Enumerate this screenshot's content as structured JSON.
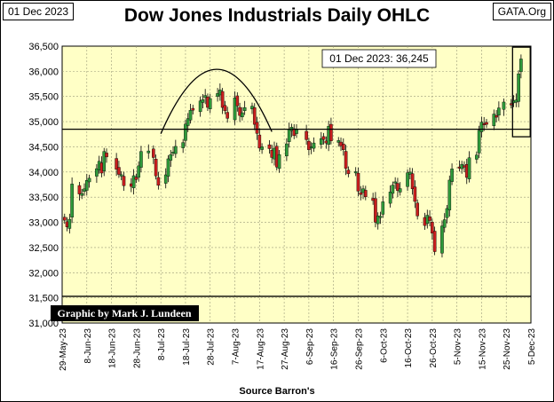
{
  "header": {
    "date_label": "01 Dec 2023",
    "source_label": "GATA.Org"
  },
  "chart_data": {
    "type": "candlestick-ohlc",
    "title": "Dow Jones Industrials Daily OHLC",
    "xlabel": "Source Barron's",
    "ylabel": "",
    "ylim": [
      31000,
      36500
    ],
    "y_ticks": [
      "31,000",
      "31,500",
      "32,000",
      "32,500",
      "33,000",
      "33,500",
      "34,000",
      "34,500",
      "35,000",
      "35,500",
      "36,000",
      "36,500"
    ],
    "y_tick_values": [
      31000,
      31500,
      32000,
      32500,
      33000,
      33500,
      34000,
      34500,
      35000,
      35500,
      36000,
      36500
    ],
    "x_ticks": [
      "29-May-23",
      "8-Jun-23",
      "18-Jun-23",
      "28-Jun-23",
      "8-Jul-23",
      "18-Jul-23",
      "28-Jul-23",
      "7-Aug-23",
      "17-Aug-23",
      "27-Aug-23",
      "6-Sep-23",
      "16-Sep-23",
      "26-Sep-23",
      "6-Oct-23",
      "16-Oct-23",
      "26-Oct-23",
      "5-Nov-23",
      "15-Nov-23",
      "25-Nov-23",
      "5-Dec-23"
    ],
    "xlim": [
      "2023-05-29",
      "2023-12-05"
    ],
    "grid": true,
    "up_color": "#2e9a3a",
    "down_color": "#c81e1e",
    "background_color": "#ffffc6",
    "callout": "01 Dec 2023:  36,245",
    "credit": "Graphic by Mark J. Lundeen",
    "reference_lines": [
      34850,
      31530
    ],
    "closes": [
      [
        "2023-05-30",
        33042
      ],
      [
        "2023-05-31",
        32908
      ],
      [
        "2023-06-01",
        33061
      ],
      [
        "2023-06-02",
        33762
      ],
      [
        "2023-06-05",
        33563
      ],
      [
        "2023-06-06",
        33573
      ],
      [
        "2023-06-07",
        33665
      ],
      [
        "2023-06-08",
        33833
      ],
      [
        "2023-06-09",
        33876
      ],
      [
        "2023-06-12",
        34066
      ],
      [
        "2023-06-13",
        34212
      ],
      [
        "2023-06-14",
        33979
      ],
      [
        "2023-06-15",
        34408
      ],
      [
        "2023-06-16",
        34299
      ],
      [
        "2023-06-20",
        34053
      ],
      [
        "2023-06-21",
        33952
      ],
      [
        "2023-06-22",
        33946
      ],
      [
        "2023-06-23",
        33727
      ],
      [
        "2023-06-26",
        33714
      ],
      [
        "2023-06-27",
        33927
      ],
      [
        "2023-06-28",
        33853
      ],
      [
        "2023-06-29",
        34122
      ],
      [
        "2023-06-30",
        34408
      ],
      [
        "2023-07-03",
        34418
      ],
      [
        "2023-07-05",
        34288
      ],
      [
        "2023-07-06",
        33922
      ],
      [
        "2023-07-07",
        33735
      ],
      [
        "2023-07-10",
        33944
      ],
      [
        "2023-07-11",
        34262
      ],
      [
        "2023-07-12",
        34347
      ],
      [
        "2023-07-13",
        34395
      ],
      [
        "2023-07-14",
        34509
      ],
      [
        "2023-07-17",
        34585
      ],
      [
        "2023-07-18",
        34952
      ],
      [
        "2023-07-19",
        35061
      ],
      [
        "2023-07-20",
        35225
      ],
      [
        "2023-07-21",
        35228
      ],
      [
        "2023-07-24",
        35411
      ],
      [
        "2023-07-25",
        35438
      ],
      [
        "2023-07-26",
        35520
      ],
      [
        "2023-07-27",
        35283
      ],
      [
        "2023-07-28",
        35459
      ],
      [
        "2023-07-31",
        35560
      ],
      [
        "2023-08-01",
        35630
      ],
      [
        "2023-08-02",
        35282
      ],
      [
        "2023-08-03",
        35216
      ],
      [
        "2023-08-04",
        35066
      ],
      [
        "2023-08-07",
        35473
      ],
      [
        "2023-08-08",
        35314
      ],
      [
        "2023-08-09",
        35123
      ],
      [
        "2023-08-10",
        35177
      ],
      [
        "2023-08-11",
        35281
      ],
      [
        "2023-08-14",
        35308
      ],
      [
        "2023-08-15",
        34946
      ],
      [
        "2023-08-16",
        34766
      ],
      [
        "2023-08-17",
        34475
      ],
      [
        "2023-08-18",
        34501
      ],
      [
        "2023-08-21",
        34464
      ],
      [
        "2023-08-22",
        34289
      ],
      [
        "2023-08-23",
        34473
      ],
      [
        "2023-08-24",
        34099
      ],
      [
        "2023-08-25",
        34347
      ],
      [
        "2023-08-28",
        34560
      ],
      [
        "2023-08-29",
        34852
      ],
      [
        "2023-08-30",
        34890
      ],
      [
        "2023-08-31",
        34722
      ],
      [
        "2023-09-01",
        34838
      ],
      [
        "2023-09-05",
        34642
      ],
      [
        "2023-09-06",
        34443
      ],
      [
        "2023-09-07",
        34501
      ],
      [
        "2023-09-08",
        34577
      ],
      [
        "2023-09-11",
        34664
      ],
      [
        "2023-09-12",
        34646
      ],
      [
        "2023-09-13",
        34576
      ],
      [
        "2023-09-14",
        34908
      ],
      [
        "2023-09-15",
        34618
      ],
      [
        "2023-09-18",
        34625
      ],
      [
        "2023-09-19",
        34518
      ],
      [
        "2023-09-20",
        34441
      ],
      [
        "2023-09-21",
        34070
      ],
      [
        "2023-09-22",
        33964
      ],
      [
        "2023-09-25",
        34007
      ],
      [
        "2023-09-26",
        33619
      ],
      [
        "2023-09-27",
        33551
      ],
      [
        "2023-09-28",
        33667
      ],
      [
        "2023-09-29",
        33508
      ],
      [
        "2023-10-02",
        33433
      ],
      [
        "2023-10-03",
        33002
      ],
      [
        "2023-10-04",
        33129
      ],
      [
        "2023-10-05",
        33120
      ],
      [
        "2023-10-06",
        33408
      ],
      [
        "2023-10-09",
        33605
      ],
      [
        "2023-10-10",
        33740
      ],
      [
        "2023-10-11",
        33805
      ],
      [
        "2023-10-12",
        33631
      ],
      [
        "2023-10-13",
        33670
      ],
      [
        "2023-10-16",
        33985
      ],
      [
        "2023-10-17",
        33998
      ],
      [
        "2023-10-18",
        33665
      ],
      [
        "2023-10-19",
        33415
      ],
      [
        "2023-10-20",
        33127
      ],
      [
        "2023-10-23",
        32937
      ],
      [
        "2023-10-24",
        33141
      ],
      [
        "2023-10-25",
        33036
      ],
      [
        "2023-10-26",
        32785
      ],
      [
        "2023-10-27",
        32418
      ],
      [
        "2023-10-30",
        32929
      ],
      [
        "2023-10-31",
        33053
      ],
      [
        "2023-11-01",
        33275
      ],
      [
        "2023-11-02",
        33839
      ],
      [
        "2023-11-03",
        34061
      ],
      [
        "2023-11-06",
        34096
      ],
      [
        "2023-11-07",
        34153
      ],
      [
        "2023-11-08",
        34112
      ],
      [
        "2023-11-09",
        33892
      ],
      [
        "2023-11-10",
        34283
      ],
      [
        "2023-11-13",
        34337
      ],
      [
        "2023-11-14",
        34828
      ],
      [
        "2023-11-15",
        34991
      ],
      [
        "2023-11-16",
        34945
      ],
      [
        "2023-11-17",
        34947
      ],
      [
        "2023-11-20",
        35151
      ],
      [
        "2023-11-21",
        35088
      ],
      [
        "2023-11-22",
        35273
      ],
      [
        "2023-11-24",
        35390
      ],
      [
        "2023-11-27",
        35333
      ],
      [
        "2023-11-28",
        35417
      ],
      [
        "2023-11-29",
        35430
      ],
      [
        "2023-11-30",
        35951
      ],
      [
        "2023-12-01",
        36245
      ]
    ]
  }
}
